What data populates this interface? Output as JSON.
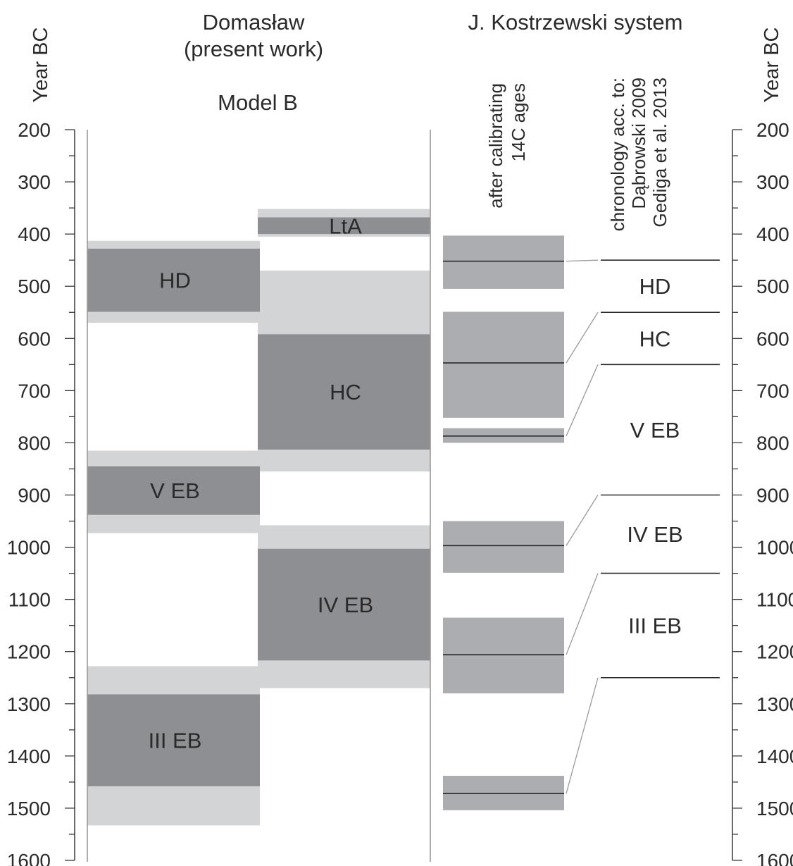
{
  "headers": {
    "left_axis_title": "Year BC",
    "right_axis_title": "Year BC",
    "domaslaw_title_line1": "Domasław",
    "domaslaw_title_line2": "(present work)",
    "model_label": "Model B",
    "kostrzewski_title": "J. Kostrzewski system",
    "calibrated_col_line1": "after calibrating",
    "calibrated_col_line2": "14C ages",
    "chronology_col_line1": "chronology acc. to:",
    "chronology_col_line2": "Dąbrowski 2009",
    "chronology_col_line3": "Gediga et al. 2013"
  },
  "colors": {
    "light_band": "#d3d4d6",
    "dark_band": "#8e8f92",
    "calibrated_band": "#acadb0",
    "line": "#2a2a2a",
    "thin_line": "#9a9a9a"
  },
  "chart_data": {
    "type": "chronology",
    "axis": {
      "label": "Year BC",
      "min": 200,
      "max": 1600,
      "major_step": 100,
      "minor_step": 50,
      "ticks": [
        200,
        300,
        400,
        500,
        600,
        700,
        800,
        900,
        1000,
        1100,
        1200,
        1300,
        1400,
        1500,
        1600
      ]
    },
    "model_b": [
      {
        "label": "LtA",
        "column": 2,
        "outer": [
          352,
          405
        ],
        "inner": [
          368,
          400
        ]
      },
      {
        "label": "HD",
        "column": 1,
        "outer": [
          413,
          570
        ],
        "inner": [
          428,
          549
        ]
      },
      {
        "label": "HC",
        "column": 2,
        "outer": [
          470,
          855
        ],
        "inner": [
          592,
          813
        ]
      },
      {
        "label": "V EB",
        "column": 1,
        "outer": [
          815,
          973
        ],
        "inner": [
          845,
          938
        ]
      },
      {
        "label": "IV EB",
        "column": 2,
        "outer": [
          958,
          1270
        ],
        "inner": [
          1003,
          1217
        ]
      },
      {
        "label": "III EB",
        "column": 1,
        "outer": [
          1228,
          1533
        ],
        "inner": [
          1282,
          1458
        ]
      }
    ],
    "calibrated_14c": [
      {
        "range": [
          403,
          505
        ],
        "median": 452
      },
      {
        "range": [
          549,
          752
        ],
        "median": 647
      },
      {
        "range": [
          772,
          800
        ],
        "median": 787
      },
      {
        "range": [
          950,
          1049
        ],
        "median": 997
      },
      {
        "range": [
          1135,
          1280
        ],
        "median": 1206
      },
      {
        "range": [
          1438,
          1504
        ],
        "median": 1472
      }
    ],
    "chronology_boundaries": [
      450,
      550,
      650,
      900,
      1050,
      1250
    ],
    "chronology_periods": [
      {
        "label": "HD",
        "from": 450,
        "to": 550
      },
      {
        "label": "HC",
        "from": 550,
        "to": 650
      },
      {
        "label": "V EB",
        "from": 650,
        "to": 900
      },
      {
        "label": "IV EB",
        "from": 900,
        "to": 1050
      },
      {
        "label": "III EB",
        "from": 1050,
        "to": 1250
      }
    ]
  }
}
